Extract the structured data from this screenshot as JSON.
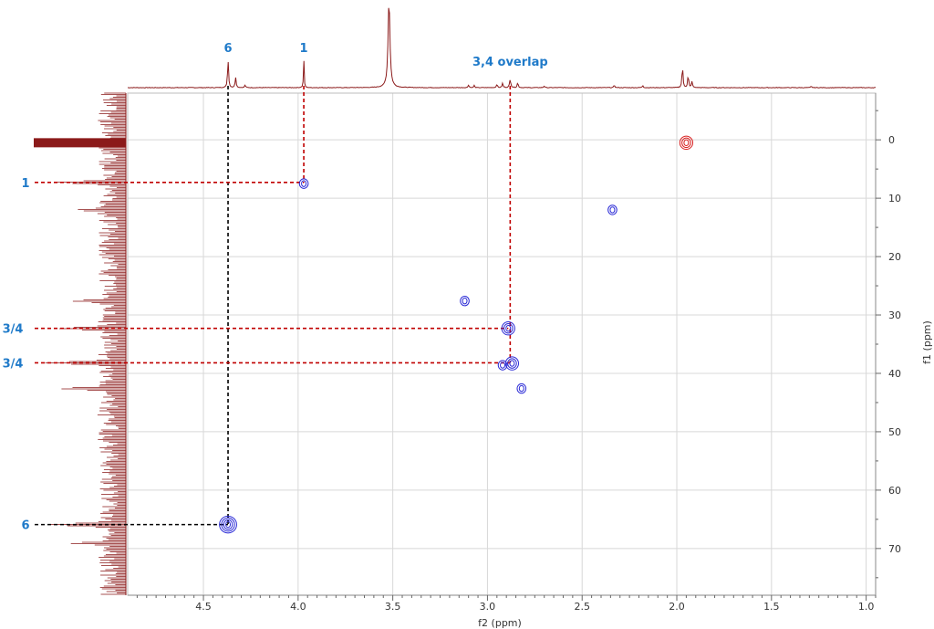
{
  "chart_data": {
    "type": "scatter",
    "subtype": "2D NMR HSQC contour plot",
    "xlabel": "f2 (ppm)",
    "ylabel": "f1 (ppm)",
    "xlim": [
      4.9,
      0.95
    ],
    "ylim": [
      -8,
      78
    ],
    "x_ticks": [
      4.5,
      4.0,
      3.5,
      3.0,
      2.5,
      2.0,
      1.5,
      1.0
    ],
    "y_ticks": [
      0,
      10,
      20,
      30,
      40,
      50,
      60,
      70
    ],
    "x_tick_labels": [
      "4.5",
      "4.0",
      "3.5",
      "3.0",
      "2.5",
      "2.0",
      "1.5",
      "1.0"
    ],
    "y_tick_labels": [
      "0",
      "10",
      "20",
      "30",
      "40",
      "50",
      "60",
      "70"
    ],
    "grid": true,
    "colors": {
      "projection": "#8b1a1a",
      "positive_contour": "#2b2bd6",
      "negative_contour": "#d82020",
      "label": "#1f7ac9",
      "red_guide": "#c00000",
      "black_guide": "#000000",
      "grid": "#d8d8d8"
    },
    "cross_peaks": [
      {
        "f2": 4.37,
        "f1": 65.9,
        "size": 3,
        "phase": "positive"
      },
      {
        "f2": 3.97,
        "f1": 7.5,
        "size": 1,
        "phase": "positive"
      },
      {
        "f2": 2.89,
        "f1": 32.3,
        "size": 2,
        "phase": "positive"
      },
      {
        "f2": 2.87,
        "f1": 38.3,
        "size": 2,
        "phase": "positive"
      },
      {
        "f2": 2.92,
        "f1": 38.6,
        "size": 1,
        "phase": "positive"
      },
      {
        "f2": 2.82,
        "f1": 42.6,
        "size": 1,
        "phase": "positive"
      },
      {
        "f2": 3.12,
        "f1": 27.6,
        "size": 1,
        "phase": "positive"
      },
      {
        "f2": 2.34,
        "f1": 12.0,
        "size": 1,
        "phase": "positive"
      },
      {
        "f2": 1.95,
        "f1": 0.5,
        "size": 2,
        "phase": "negative"
      }
    ],
    "top_projection_peaks": [
      {
        "ppm": 3.52,
        "height": 1.0,
        "width": 0.006
      },
      {
        "ppm": 4.37,
        "height": 0.33,
        "width": 0.003
      },
      {
        "ppm": 4.33,
        "height": 0.12,
        "width": 0.003
      },
      {
        "ppm": 3.97,
        "height": 0.32,
        "width": 0.002
      },
      {
        "ppm": 2.88,
        "height": 0.09,
        "width": 0.004
      },
      {
        "ppm": 2.92,
        "height": 0.05,
        "width": 0.003
      },
      {
        "ppm": 2.84,
        "height": 0.06,
        "width": 0.003
      },
      {
        "ppm": 2.95,
        "height": 0.04,
        "width": 0.003
      },
      {
        "ppm": 1.97,
        "height": 0.26,
        "width": 0.003
      },
      {
        "ppm": 1.94,
        "height": 0.15,
        "width": 0.003
      },
      {
        "ppm": 1.92,
        "height": 0.07,
        "width": 0.003
      },
      {
        "ppm": 3.1,
        "height": 0.03,
        "width": 0.003
      },
      {
        "ppm": 3.07,
        "height": 0.025,
        "width": 0.003
      },
      {
        "ppm": 2.7,
        "height": 0.02,
        "width": 0.003
      },
      {
        "ppm": 2.33,
        "height": 0.03,
        "width": 0.003
      },
      {
        "ppm": 2.18,
        "height": 0.025,
        "width": 0.003
      },
      {
        "ppm": 1.29,
        "height": 0.015,
        "width": 0.003
      },
      {
        "ppm": 4.28,
        "height": 0.03,
        "width": 0.003
      }
    ],
    "side_projection_peaks": [
      {
        "ppm": 0.5,
        "intensity": 1.0
      },
      {
        "ppm": 7.3,
        "intensity": 0.75
      },
      {
        "ppm": 12.0,
        "intensity": 0.55
      },
      {
        "ppm": 27.6,
        "intensity": 0.6
      },
      {
        "ppm": 32.3,
        "intensity": 0.75
      },
      {
        "ppm": 38.2,
        "intensity": 0.85
      },
      {
        "ppm": 42.6,
        "intensity": 0.7
      },
      {
        "ppm": 65.9,
        "intensity": 0.85
      },
      {
        "ppm": 69.1,
        "intensity": 0.6
      }
    ],
    "annotations": [
      {
        "text": "6",
        "axis": "f2",
        "ppm": 4.37,
        "style": "black"
      },
      {
        "text": "1",
        "axis": "f2",
        "ppm": 3.97,
        "style": "red"
      },
      {
        "text": "3,4 overlap",
        "axis": "f2",
        "ppm": 2.88,
        "style": "red"
      },
      {
        "text": "1",
        "axis": "f1",
        "ppm": 7.3,
        "target_f2": 3.97,
        "style": "red"
      },
      {
        "text": "3/4",
        "axis": "f1",
        "ppm": 32.3,
        "target_f2": 2.89,
        "style": "red"
      },
      {
        "text": "3/4",
        "axis": "f1",
        "ppm": 38.2,
        "target_f2": 2.88,
        "style": "red"
      },
      {
        "text": "6",
        "axis": "f1",
        "ppm": 65.9,
        "target_f2": 4.37,
        "style": "black"
      }
    ]
  }
}
